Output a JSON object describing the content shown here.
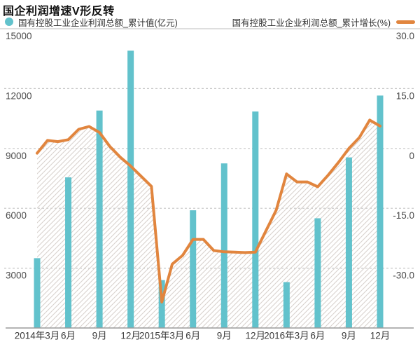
{
  "title": "国企利润增速V形反转",
  "legend": {
    "bars_label": "国有控股工业企业利润总额_累计值(亿元)",
    "line_label": "国有控股工业企业利润总额_累计增长(%)"
  },
  "colors": {
    "bar": "#62c2cc",
    "line": "#e1853e",
    "grid": "#c6c6c6",
    "grid_top": "#c9c9c9",
    "baseline": "#9b9b9b",
    "hatch": "#d8d2ce",
    "axis_text": "#4b4b4b",
    "x_text": "#3a3a3a"
  },
  "axes": {
    "left_range": [
      0,
      15000
    ],
    "right_range": [
      -45,
      30
    ],
    "left_ticks": [
      {
        "value": 15000,
        "label": "15000"
      },
      {
        "value": 12000,
        "label": "12000"
      },
      {
        "value": 9000,
        "label": "9000"
      },
      {
        "value": 6000,
        "label": "6000"
      },
      {
        "value": 3000,
        "label": "3000"
      }
    ],
    "right_ticks": [
      {
        "value": 30,
        "label": "30.0"
      },
      {
        "value": 15,
        "label": "15.0"
      },
      {
        "value": 0,
        "label": "0"
      },
      {
        "value": -15,
        "label": "-15.0"
      },
      {
        "value": -30,
        "label": "-30.0"
      }
    ]
  },
  "chart_data": [
    {
      "type": "bar",
      "name": "国有控股工业企业利润总额_累计值(亿元)",
      "axis": "left",
      "unit": "亿元",
      "ylim": [
        0,
        15000
      ],
      "categories": [
        "2014年3月",
        "6月",
        "9月",
        "12月",
        "2015年3月",
        "6月",
        "9月",
        "12月",
        "2016年3月",
        "6月",
        "9月",
        "12月"
      ],
      "values": [
        3500,
        7550,
        10900,
        13900,
        2400,
        5900,
        8250,
        10850,
        2300,
        5500,
        8550,
        11650
      ]
    },
    {
      "type": "line",
      "name": "国有控股工业企业利润总额_累计增长(%)",
      "axis": "right",
      "unit": "%",
      "ylim": [
        -45,
        30
      ],
      "area_hatch": true,
      "x": [
        "2014-03",
        "2014-04",
        "2014-05",
        "2014-06",
        "2014-07",
        "2014-08",
        "2014-09",
        "2014-10",
        "2014-11",
        "2014-12",
        "2015-02",
        "2015-03",
        "2015-04",
        "2015-05",
        "2015-06",
        "2015-07",
        "2015-08",
        "2015-09",
        "2015-10",
        "2015-11",
        "2015-12",
        "2016-02",
        "2016-03",
        "2016-04",
        "2016-05",
        "2016-06",
        "2016-07",
        "2016-08",
        "2016-09",
        "2016-10",
        "2016-11",
        "2016-12"
      ],
      "month_index": [
        0,
        1,
        2,
        3,
        4,
        5,
        6,
        7,
        8,
        9,
        11,
        12,
        13,
        14,
        15,
        16,
        17,
        18,
        19,
        20,
        21,
        23,
        24,
        25,
        26,
        27,
        28,
        29,
        30,
        31,
        32,
        33
      ],
      "values": [
        -1.2,
        2.0,
        1.7,
        2.2,
        4.8,
        5.5,
        4.0,
        0.5,
        -2.2,
        -4.4,
        -9.5,
        -38.5,
        -29.0,
        -26.8,
        -22.8,
        -22.8,
        -25.6,
        -25.9,
        -26.0,
        -26.1,
        -26.0,
        -15.5,
        -6.4,
        -8.4,
        -8.4,
        -9.6,
        -6.7,
        -3.5,
        0.0,
        2.7,
        7.1,
        5.6
      ]
    }
  ]
}
